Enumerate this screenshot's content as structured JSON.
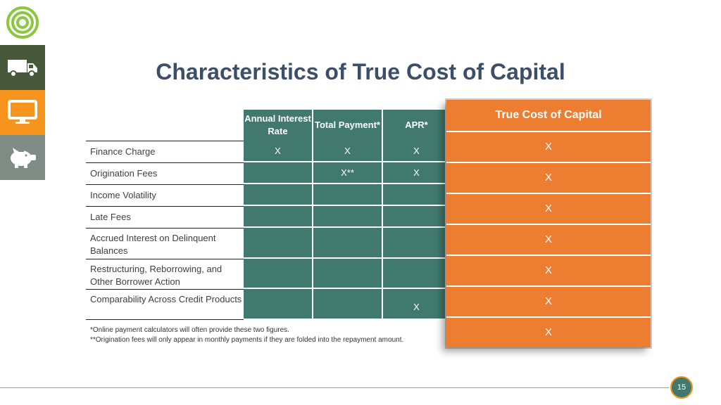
{
  "title": "Characteristics of True Cost of Capital",
  "columns": [
    "Annual Interest Rate",
    "Total Payment*",
    "APR*"
  ],
  "rows": [
    {
      "label": "Finance Charge",
      "cells": [
        "X",
        "X",
        "X"
      ]
    },
    {
      "label": "Origination Fees",
      "cells": [
        "",
        "X**",
        "X"
      ]
    },
    {
      "label": "Income Volatility",
      "cells": [
        "",
        "",
        ""
      ]
    },
    {
      "label": "Late Fees",
      "cells": [
        "",
        "",
        ""
      ]
    },
    {
      "label": "Accrued Interest on Delinquent Balances",
      "cells": [
        "",
        "",
        ""
      ]
    },
    {
      "label": "Restructuring, Reborrowing, and Other Borrower Action",
      "cells": [
        "",
        "",
        ""
      ]
    },
    {
      "label": "Comparability Across Credit Products",
      "cells": [
        "",
        "",
        "X"
      ]
    }
  ],
  "true_cost": {
    "header": "True Cost of Capital",
    "cells": [
      "X",
      "X",
      "X",
      "X",
      "X",
      "X",
      "X"
    ]
  },
  "footnotes": [
    "*Online payment calculators will often provide these two figures.",
    "**Origination fees will only appear in monthly payments if they are folded into the repayment amount."
  ],
  "page_number": "15",
  "icons": {
    "logo": "concentric-circles-logo",
    "truck": "truck-icon",
    "monitor": "monitor-icon",
    "piggy": "piggy-bank-icon"
  },
  "colors": {
    "teal": "#41796e",
    "orange": "#ed7d31",
    "title": "#3d4f66",
    "rail_green": "#47593a",
    "rail_orange": "#f7941d",
    "rail_gray": "#7f8c86",
    "logo_green": "#8dc63f"
  }
}
